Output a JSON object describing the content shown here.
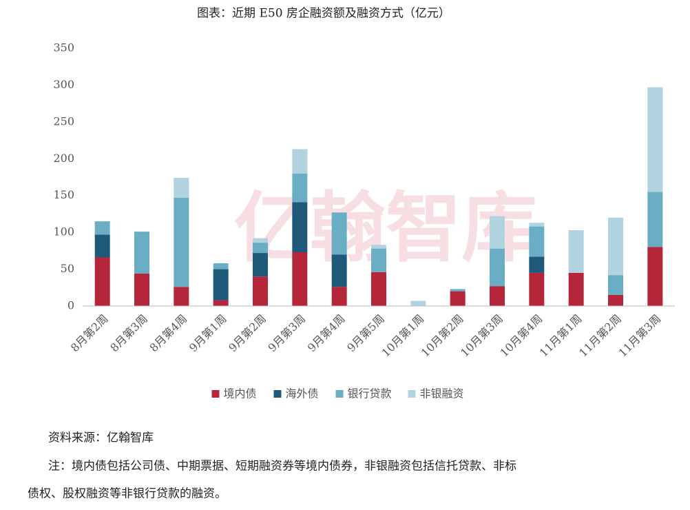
{
  "chart_data": {
    "type": "stacked_bar",
    "title": "图表：近期 E50 房企融资额及融资方式（亿元）",
    "categories": [
      "8月第2周",
      "8月第3周",
      "8月第4周",
      "9月第1周",
      "9月第2周",
      "9月第3周",
      "9月第4周",
      "9月第5周",
      "10月第1周",
      "10月第2周",
      "10月第3周",
      "10月第4周",
      "11月第1周",
      "11月第2周",
      "11月第3周"
    ],
    "series": [
      {
        "name": "境内债",
        "color": "#b5263a",
        "values": [
          66,
          44,
          26,
          8,
          40,
          73,
          26,
          46,
          0,
          20,
          27,
          45,
          45,
          15,
          80
        ]
      },
      {
        "name": "海外债",
        "color": "#1f5a7a",
        "values": [
          31,
          0,
          0,
          42,
          32,
          68,
          44,
          0,
          0,
          0,
          0,
          22,
          0,
          0,
          0
        ]
      },
      {
        "name": "银行贷款",
        "color": "#6aaec6",
        "values": [
          18,
          57,
          121,
          8,
          14,
          39,
          57,
          32,
          0,
          3,
          51,
          41,
          0,
          27,
          75
        ]
      },
      {
        "name": "非银融资",
        "color": "#b1d3e0",
        "values": [
          0,
          0,
          27,
          0,
          6,
          33,
          0,
          5,
          7,
          0,
          44,
          5,
          58,
          78,
          142
        ]
      }
    ],
    "ylim": [
      0,
      350
    ],
    "yticks": [
      0,
      50,
      100,
      150,
      200,
      250,
      300,
      350
    ],
    "legend": "bottom",
    "watermark": "亿翰智库",
    "source": "资料来源：亿翰智库",
    "note": [
      "注：境内债包括公司债、中期票据、短期融资券等境内债券，非银融资包括信托贷款、非标",
      "债权、股权融资等非银行贷款的融资。"
    ]
  }
}
